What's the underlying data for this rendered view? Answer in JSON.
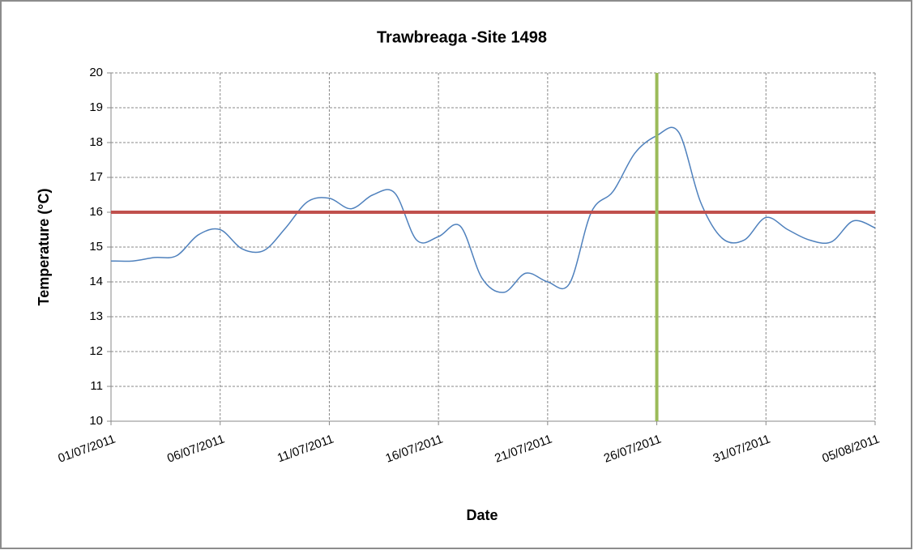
{
  "chart_data": {
    "type": "line",
    "title": "Trawbreaga -Site 1498",
    "x_label": "Date",
    "y_label": "Temperature (°C)",
    "x": [
      "01/07/2011",
      "02/07/2011",
      "03/07/2011",
      "04/07/2011",
      "05/07/2011",
      "06/07/2011",
      "07/07/2011",
      "08/07/2011",
      "09/07/2011",
      "10/07/2011",
      "11/07/2011",
      "12/07/2011",
      "13/07/2011",
      "14/07/2011",
      "15/07/2011",
      "16/07/2011",
      "17/07/2011",
      "18/07/2011",
      "19/07/2011",
      "20/07/2011",
      "21/07/2011",
      "22/07/2011",
      "23/07/2011",
      "24/07/2011",
      "25/07/2011",
      "26/07/2011",
      "27/07/2011",
      "28/07/2011",
      "29/07/2011",
      "30/07/2011",
      "31/07/2011",
      "01/08/2011",
      "02/08/2011",
      "03/08/2011",
      "04/08/2011",
      "05/08/2011"
    ],
    "series": [
      {
        "name": "Temperature",
        "color": "#4f81bd",
        "values": [
          14.6,
          14.6,
          14.7,
          14.75,
          15.35,
          15.5,
          14.95,
          14.9,
          15.55,
          16.3,
          16.4,
          16.1,
          16.5,
          16.55,
          15.2,
          15.3,
          15.6,
          14.1,
          13.7,
          14.25,
          14.0,
          13.95,
          16.0,
          16.6,
          17.7,
          18.2,
          18.3,
          16.3,
          15.25,
          15.2,
          15.85,
          15.5,
          15.2,
          15.15,
          15.75,
          15.55
        ]
      }
    ],
    "xlim": [
      "01/07/2011",
      "05/08/2011"
    ],
    "xticks": [
      "01/07/2011",
      "06/07/2011",
      "11/07/2011",
      "16/07/2011",
      "21/07/2011",
      "26/07/2011",
      "31/07/2011",
      "05/08/2011"
    ],
    "ylim": [
      10,
      20
    ],
    "yticks": [
      10,
      11,
      12,
      13,
      14,
      15,
      16,
      17,
      18,
      19,
      20
    ],
    "grid": true,
    "reference_lines": [
      {
        "axis": "y",
        "value": 16,
        "color": "#c0504d"
      },
      {
        "axis": "x",
        "value": "26/07/2011",
        "color": "#9bbb59"
      }
    ]
  }
}
